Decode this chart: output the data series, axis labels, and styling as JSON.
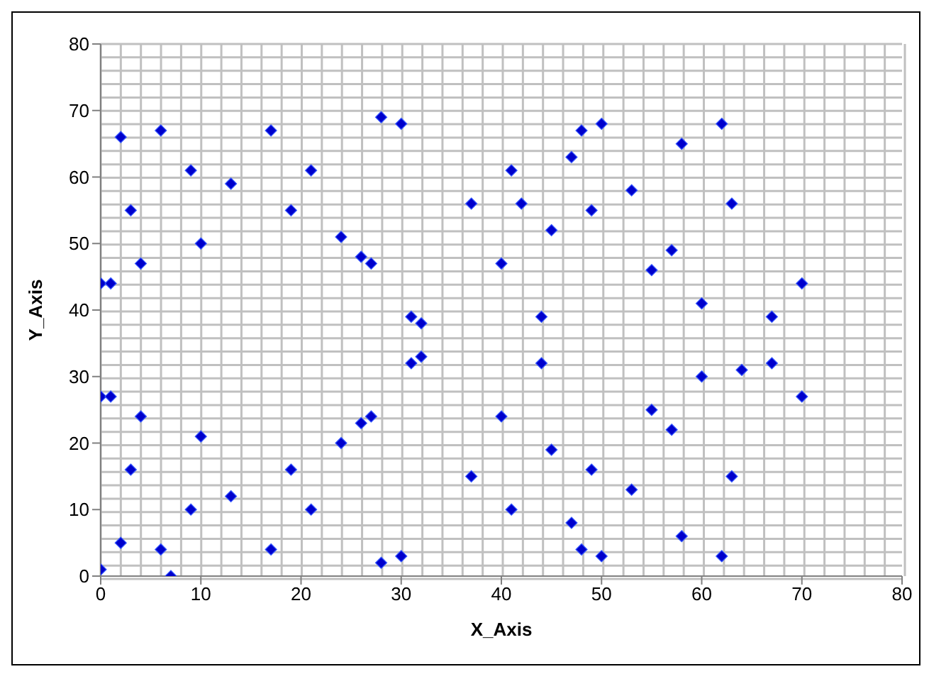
{
  "chart_data": {
    "type": "scatter",
    "xlabel": "X_Axis",
    "ylabel": "Y_Axis",
    "xlim": [
      0,
      80
    ],
    "ylim": [
      0,
      80
    ],
    "xticks": [
      0,
      10,
      20,
      30,
      40,
      50,
      60,
      70,
      80
    ],
    "yticks": [
      0,
      10,
      20,
      30,
      40,
      50,
      60,
      70,
      80
    ],
    "grid": true,
    "marker": "diamond",
    "legend": false,
    "series": [
      {
        "color": "#0000cc",
        "x": [
          0,
          1,
          2,
          3,
          4,
          6,
          9,
          10,
          13,
          17,
          19,
          21,
          24,
          26,
          27,
          28,
          30,
          31,
          32,
          37,
          40,
          41,
          42,
          45,
          47,
          48,
          49,
          50,
          53,
          55,
          57,
          58,
          60,
          62,
          63,
          67,
          70,
          0,
          1,
          0,
          2,
          3,
          4,
          6,
          7,
          9,
          10,
          13,
          17,
          19,
          21,
          24,
          26,
          27,
          28,
          30,
          31,
          32,
          37,
          40,
          41,
          44,
          44,
          45,
          47,
          48,
          49,
          50,
          53,
          55,
          57,
          58,
          60,
          62,
          63,
          64,
          67,
          70
        ],
        "values": [
          44,
          44,
          66,
          55,
          47,
          67,
          61,
          50,
          59,
          67,
          55,
          61,
          51,
          48,
          47,
          69,
          68,
          39,
          38,
          56,
          47,
          61,
          56,
          52,
          63,
          67,
          55,
          68,
          58,
          46,
          49,
          65,
          41,
          68,
          56,
          39,
          44,
          27,
          27,
          1,
          5,
          16,
          24,
          4,
          0,
          10,
          21,
          12,
          4,
          16,
          10,
          20,
          23,
          24,
          2,
          3,
          32,
          33,
          15,
          24,
          10,
          39,
          32,
          19,
          8,
          4,
          16,
          3,
          13,
          25,
          22,
          6,
          30,
          3,
          15,
          31,
          32,
          27
        ]
      }
    ]
  }
}
